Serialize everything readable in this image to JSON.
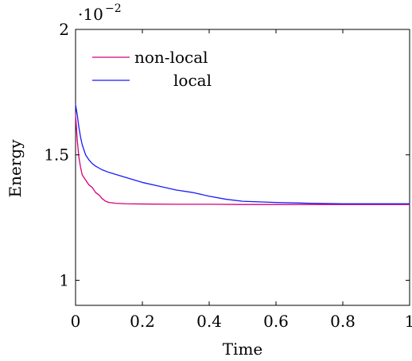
{
  "chart_data": {
    "type": "line",
    "xlabel": "Time",
    "ylabel": "Energy",
    "scale_note": {
      "base": "·10",
      "exp": "−2"
    },
    "xlim": [
      0,
      1
    ],
    "ylim": [
      0.9,
      2.0
    ],
    "x_ticks": [
      0,
      0.2,
      0.4,
      0.6,
      0.8,
      1
    ],
    "x_tick_labels": [
      "0",
      "0.2",
      "0.4",
      "0.6",
      "0.8",
      "1"
    ],
    "y_ticks": [
      1,
      1.5,
      2
    ],
    "y_tick_labels": [
      "1",
      "1.5",
      "2"
    ],
    "grid": false,
    "legend_position": "top-left",
    "series": [
      {
        "name": "non-local",
        "color": "#d4007a",
        "x": [
          0,
          0.005,
          0.01,
          0.015,
          0.02,
          0.03,
          0.04,
          0.05,
          0.06,
          0.07,
          0.08,
          0.09,
          0.1,
          0.12,
          0.15,
          0.2,
          0.3,
          0.4,
          0.5,
          0.6,
          0.7,
          0.8,
          0.9,
          1.0
        ],
        "y": [
          1.66,
          1.56,
          1.49,
          1.45,
          1.42,
          1.4,
          1.38,
          1.37,
          1.35,
          1.34,
          1.325,
          1.315,
          1.31,
          1.307,
          1.305,
          1.304,
          1.303,
          1.303,
          1.302,
          1.302,
          1.302,
          1.302,
          1.302,
          1.302
        ]
      },
      {
        "name": "local",
        "color": "#1a1aff",
        "x": [
          0,
          0.005,
          0.01,
          0.015,
          0.02,
          0.03,
          0.04,
          0.05,
          0.06,
          0.08,
          0.1,
          0.15,
          0.2,
          0.25,
          0.3,
          0.35,
          0.4,
          0.45,
          0.5,
          0.6,
          0.7,
          0.8,
          0.9,
          1.0
        ],
        "y": [
          1.7,
          1.66,
          1.61,
          1.57,
          1.54,
          1.5,
          1.48,
          1.465,
          1.455,
          1.44,
          1.43,
          1.41,
          1.39,
          1.375,
          1.36,
          1.35,
          1.335,
          1.323,
          1.315,
          1.31,
          1.307,
          1.305,
          1.305,
          1.305
        ]
      }
    ]
  }
}
